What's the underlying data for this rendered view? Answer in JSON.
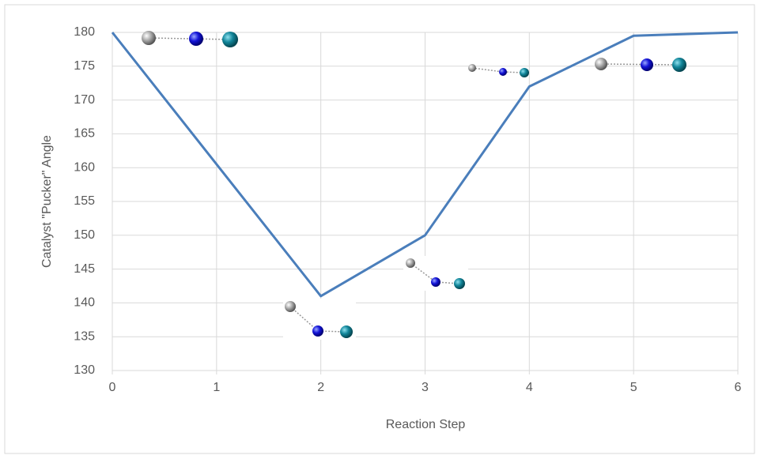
{
  "chart_data": {
    "type": "line",
    "x_label": "Reaction Step",
    "y_label": "Catalyst \"Pucker\" Angle",
    "x": [
      0,
      2,
      3,
      4,
      5,
      6
    ],
    "values": [
      180,
      141,
      150,
      172,
      179.5,
      180
    ],
    "color": "#4a7ebb",
    "xlim": [
      0,
      6
    ],
    "xticks": [
      0,
      1,
      2,
      3,
      4,
      5,
      6
    ],
    "ylim": [
      130,
      180
    ],
    "yticks": [
      130,
      135,
      140,
      145,
      150,
      155,
      160,
      165,
      170,
      175,
      180
    ],
    "grid": true
  }
}
